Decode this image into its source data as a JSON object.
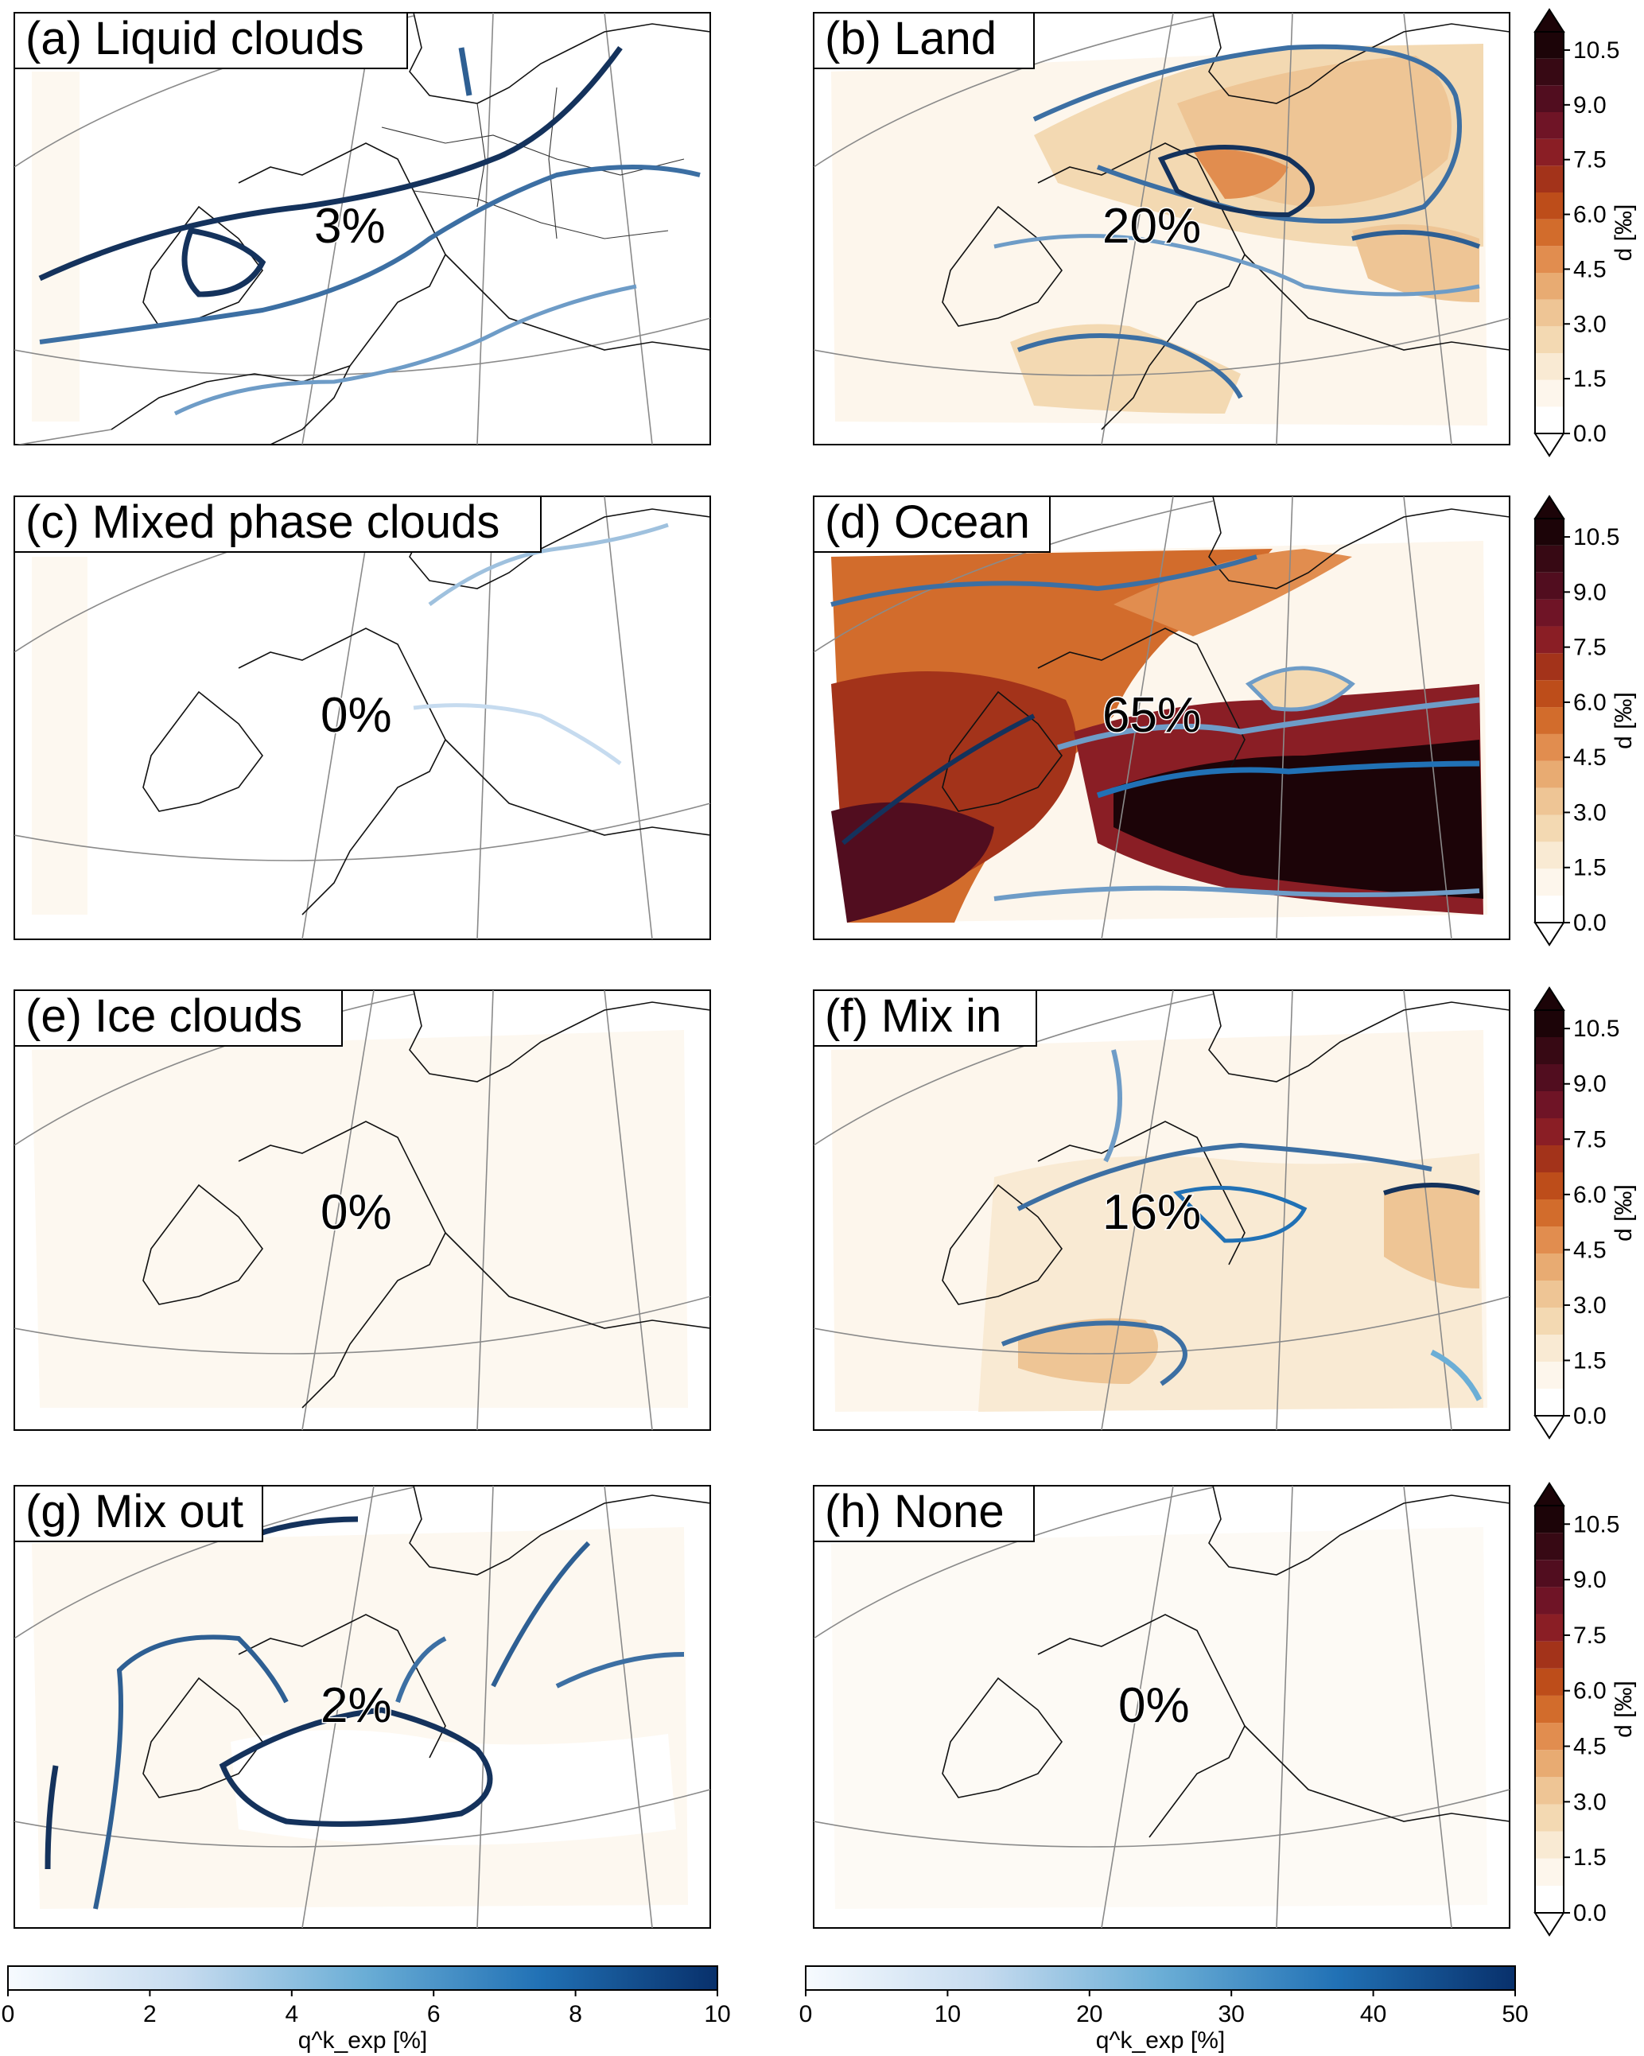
{
  "chart_data": {
    "type": "heatmap",
    "panels": [
      {
        "id": "a",
        "label": "(a) Liquid clouds",
        "value_label": "3%",
        "share_percent": 3
      },
      {
        "id": "b",
        "label": "(b) Land",
        "value_label": "20%",
        "share_percent": 20
      },
      {
        "id": "c",
        "label": "(c) Mixed phase clouds",
        "value_label": "0%",
        "share_percent": 0
      },
      {
        "id": "d",
        "label": "(d) Ocean",
        "value_label": "65%",
        "share_percent": 65
      },
      {
        "id": "e",
        "label": "(e) Ice clouds",
        "value_label": "0%",
        "share_percent": 0
      },
      {
        "id": "f",
        "label": "(f) Mix in",
        "value_label": "16%",
        "share_percent": 16
      },
      {
        "id": "g",
        "label": "(g) Mix out",
        "value_label": "2%",
        "share_percent": 2
      },
      {
        "id": "h",
        "label": "(h) None",
        "value_label": "0%",
        "share_percent": 0
      }
    ],
    "fill_colorbar": {
      "label": "d [‰]",
      "ticks": [
        "0.0",
        "1.5",
        "3.0",
        "4.5",
        "6.0",
        "7.5",
        "9.0",
        "10.5"
      ],
      "range": [
        0,
        11
      ],
      "extend": "both",
      "colors": [
        "#ffffff",
        "#fdf6ec",
        "#f9ead3",
        "#f3d9b2",
        "#eec595",
        "#e8ab72",
        "#e18d4f",
        "#d26c2c",
        "#bd4d1a",
        "#a3331a",
        "#8a1e25",
        "#6f1426",
        "#510d1f",
        "#370914",
        "#1c0408"
      ]
    },
    "contour_colorbars": [
      {
        "label": "q^k_exp [%]",
        "ticks": [
          "0",
          "2",
          "4",
          "6",
          "8",
          "10"
        ],
        "range": [
          0,
          10
        ]
      },
      {
        "label": "q^k_exp [%]",
        "ticks": [
          "0",
          "10",
          "20",
          "30",
          "40",
          "50"
        ],
        "range": [
          0,
          50
        ]
      }
    ]
  }
}
